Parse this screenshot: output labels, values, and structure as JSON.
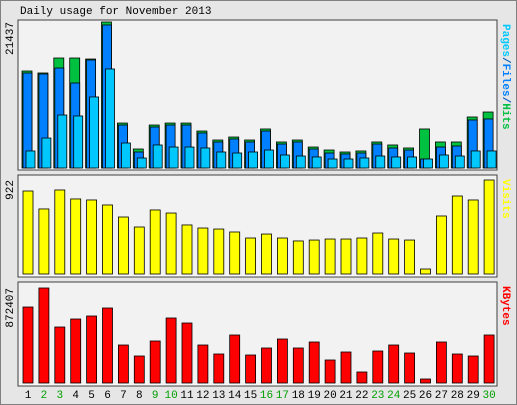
{
  "chart_data": [
    {
      "type": "bar",
      "title": "Daily usage for November 2013",
      "legend_separator": "/",
      "series": [
        {
          "name": "Hits",
          "color": "#00c040",
          "values": [
            14240,
            13950,
            16150,
            16150,
            16000,
            21437,
            6600,
            2790,
            6310,
            6600,
            6600,
            5430,
            4110,
            4550,
            4110,
            5730,
            3820,
            4110,
            3080,
            2640,
            2350,
            2500,
            3820,
            3380,
            2940,
            5730,
            3820,
            3820,
            7490,
            8220
          ]
        },
        {
          "name": "Files",
          "color": "#0080ff",
          "values": [
            13950,
            13800,
            14680,
            12480,
            15860,
            21000,
            6310,
            2350,
            6020,
            6310,
            6310,
            5140,
            3820,
            4260,
            3820,
            5430,
            3520,
            3820,
            2790,
            2200,
            2060,
            2200,
            3520,
            2940,
            2640,
            1320,
            3080,
            3230,
            7050,
            7200
          ]
        },
        {
          "name": "Pages",
          "color": "#00c8ff",
          "values": [
            2500,
            4400,
            7780,
            7640,
            10430,
            14540,
            3670,
            1470,
            3380,
            3080,
            3080,
            2940,
            2350,
            2200,
            2350,
            2640,
            1910,
            1760,
            1620,
            1320,
            1320,
            1470,
            1760,
            1620,
            1620,
            1320,
            1910,
            1760,
            2500,
            2500
          ]
        }
      ],
      "ylim": [
        0,
        21437
      ],
      "yticks": [
        21437
      ]
    },
    {
      "type": "bar",
      "series": [
        {
          "name": "Visits",
          "color": "#ffff00",
          "values": [
            814,
            638,
            824,
            736,
            726,
            677,
            559,
            461,
            628,
            598,
            481,
            451,
            441,
            412,
            353,
            392,
            353,
            324,
            333,
            343,
            343,
            353,
            402,
            343,
            333,
            49,
            569,
            765,
            726,
            922
          ]
        }
      ],
      "ylim": [
        0,
        922
      ],
      "yticks": [
        922
      ]
    },
    {
      "type": "bar",
      "series": [
        {
          "name": "KBytes",
          "color": "#ff0000",
          "values": [
            697926,
            872407,
            514261,
            587727,
            615277,
            688742,
            348963,
            247947,
            385696,
            596910,
            550994,
            348963,
            266313,
            440795,
            257131,
            321413,
            404062,
            321413,
            376513,
            211215,
            284680,
            101016,
            293862,
            348963,
            275497,
            36733,
            376513,
            266313,
            247947,
            440795
          ]
        }
      ],
      "ylim": [
        0,
        872407
      ],
      "yticks": [
        872407
      ],
      "categories": [
        "1",
        "2",
        "3",
        "4",
        "5",
        "6",
        "7",
        "8",
        "9",
        "10",
        "11",
        "12",
        "13",
        "14",
        "15",
        "16",
        "17",
        "18",
        "19",
        "20",
        "21",
        "22",
        "23",
        "24",
        "25",
        "26",
        "27",
        "28",
        "29",
        "30"
      ],
      "category_colors": [
        "#000000",
        "#00a000",
        "#00a000",
        "#000000",
        "#000000",
        "#000000",
        "#000000",
        "#000000",
        "#00a000",
        "#00a000",
        "#000000",
        "#000000",
        "#000000",
        "#000000",
        "#000000",
        "#00a000",
        "#00a000",
        "#000000",
        "#000000",
        "#000000",
        "#000000",
        "#000000",
        "#00a000",
        "#00a000",
        "#000000",
        "#000000",
        "#000000",
        "#000000",
        "#000000",
        "#00a000"
      ]
    }
  ]
}
